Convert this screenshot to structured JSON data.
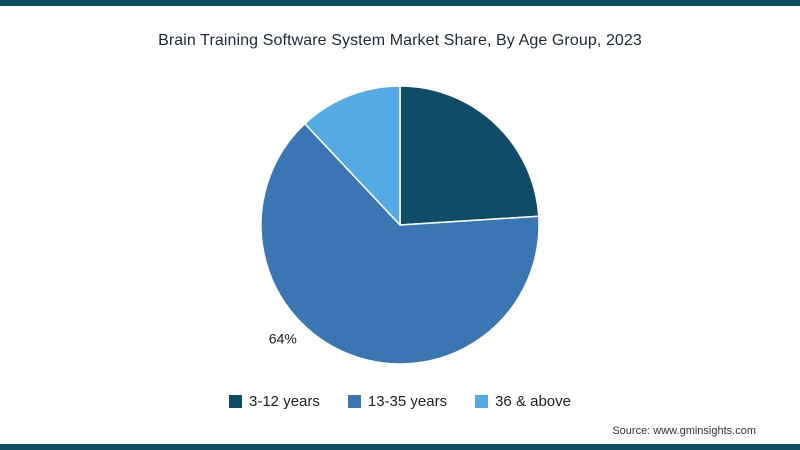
{
  "chart_data": {
    "type": "pie",
    "title": "Brain Training Software System Market Share, By Age Group, 2023",
    "slices": [
      {
        "label": "3-12 years",
        "value": 24,
        "color": "#0f4c67",
        "data_label": ""
      },
      {
        "label": "13-35 years",
        "value": 64,
        "color": "#3b76b4",
        "data_label": "64%"
      },
      {
        "label": "36 & above",
        "value": 12,
        "color": "#54abe4",
        "data_label": ""
      }
    ],
    "start_angle_deg": 0,
    "direction": "clockwise",
    "legend_position": "bottom",
    "data_label_color": "#1a1a1a"
  },
  "footer": {
    "source": "Source: www.gminsights.com"
  },
  "theme": {
    "background": "#ffffff",
    "border_color": "#0d4d61",
    "title_color": "#1c2b39"
  }
}
